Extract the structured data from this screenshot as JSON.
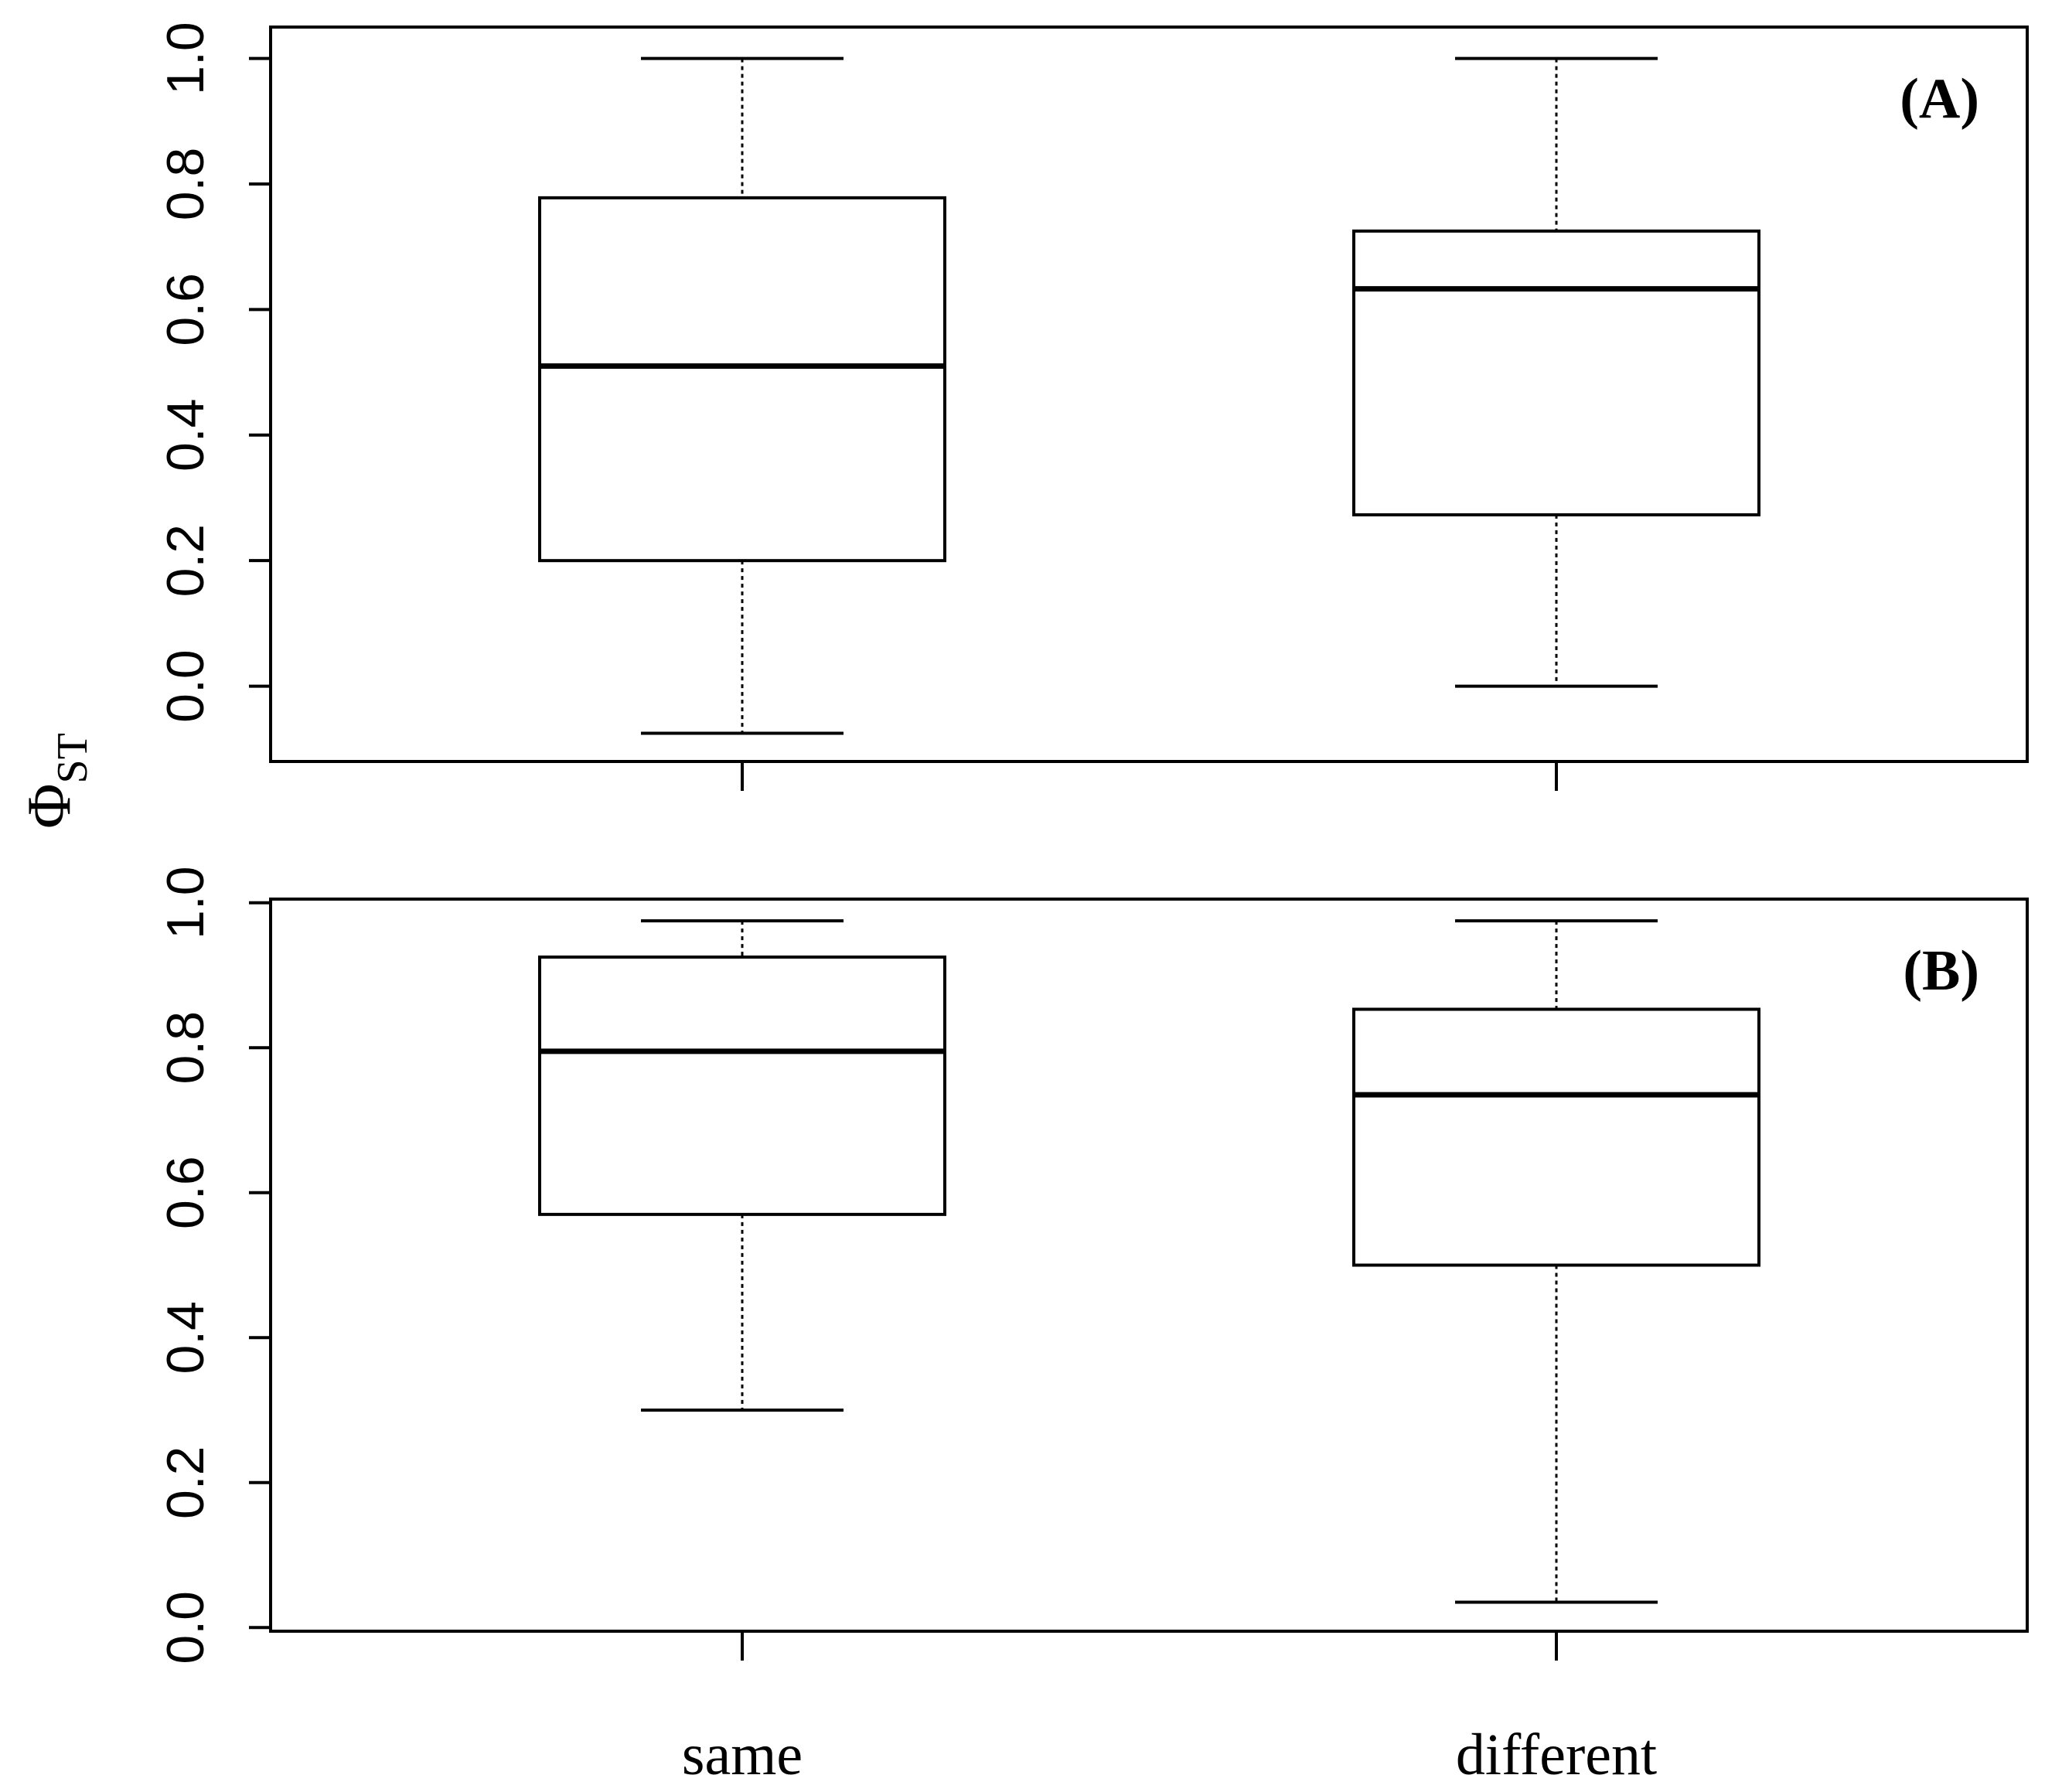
{
  "chart_data": {
    "type": "box",
    "ylabel": "Φ",
    "ylabel_sub": "ST",
    "categories": [
      "same",
      "different"
    ],
    "panels": [
      {
        "label": "(A)",
        "ylim": [
          -0.12,
          1.05
        ],
        "yticks": [
          0.0,
          0.2,
          0.4,
          0.6,
          0.8,
          1.0
        ],
        "ytick_labels": [
          "0.0",
          "0.2",
          "0.4",
          "0.6",
          "0.8",
          "1.0"
        ],
        "boxes": [
          {
            "category": "same",
            "whisker_low": -0.075,
            "q1": 0.2,
            "median": 0.51,
            "q3": 0.778,
            "whisker_high": 1.0
          },
          {
            "category": "different",
            "whisker_low": 0.0,
            "q1": 0.273,
            "median": 0.633,
            "q3": 0.725,
            "whisker_high": 1.0
          }
        ]
      },
      {
        "label": "(B)",
        "ylim": [
          -0.005,
          1.005
        ],
        "yticks": [
          0.0,
          0.2,
          0.4,
          0.6,
          0.8,
          1.0
        ],
        "ytick_labels": [
          "0.0",
          "0.2",
          "0.4",
          "0.6",
          "0.8",
          "1.0"
        ],
        "boxes": [
          {
            "category": "same",
            "whisker_low": 0.3,
            "q1": 0.57,
            "median": 0.795,
            "q3": 0.925,
            "whisker_high": 0.975
          },
          {
            "category": "different",
            "whisker_low": 0.035,
            "q1": 0.5,
            "median": 0.735,
            "q3": 0.853,
            "whisker_high": 0.975
          }
        ]
      }
    ]
  }
}
